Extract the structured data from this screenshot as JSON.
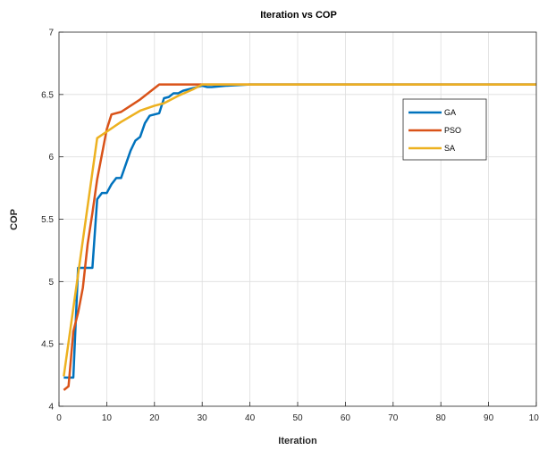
{
  "chart_data": {
    "type": "line",
    "title": "Iteration vs COP",
    "xlabel": "Iteration",
    "ylabel": "COP",
    "xlim": [
      0,
      100
    ],
    "ylim": [
      4,
      7
    ],
    "xticks": [
      0,
      10,
      20,
      30,
      40,
      50,
      60,
      70,
      80,
      90,
      100
    ],
    "yticks": [
      4,
      4.5,
      5,
      5.5,
      6,
      6.5,
      7
    ],
    "grid": true,
    "legend_position": "upper-right",
    "series": [
      {
        "name": "GA",
        "color": "#0072BD",
        "x": [
          1,
          3,
          4,
          5,
          6,
          7,
          8,
          9,
          10,
          11,
          12,
          13,
          14,
          15,
          16,
          17,
          18,
          19,
          20,
          21,
          22,
          23,
          24,
          25,
          26,
          27,
          28,
          29,
          30,
          31,
          32,
          35,
          40,
          50,
          100
        ],
        "y": [
          4.23,
          4.23,
          5.11,
          5.11,
          5.11,
          5.11,
          5.66,
          5.71,
          5.71,
          5.78,
          5.83,
          5.83,
          5.94,
          6.05,
          6.13,
          6.16,
          6.27,
          6.33,
          6.34,
          6.35,
          6.47,
          6.48,
          6.51,
          6.51,
          6.53,
          6.54,
          6.55,
          6.56,
          6.57,
          6.56,
          6.56,
          6.57,
          6.58,
          6.58,
          6.58
        ]
      },
      {
        "name": "PSO",
        "color": "#D95319",
        "x": [
          1,
          2,
          3,
          4,
          5,
          6,
          7,
          8,
          9,
          10,
          11,
          13,
          15,
          17,
          19,
          21,
          100
        ],
        "y": [
          4.13,
          4.16,
          4.6,
          4.75,
          4.95,
          5.3,
          5.55,
          5.82,
          6.02,
          6.22,
          6.34,
          6.36,
          6.41,
          6.46,
          6.52,
          6.58,
          6.58
        ]
      },
      {
        "name": "SA",
        "color": "#EDB120",
        "x": [
          1,
          8,
          13,
          17,
          20,
          22,
          25,
          28,
          30,
          50,
          100
        ],
        "y": [
          4.24,
          6.15,
          6.28,
          6.37,
          6.41,
          6.43,
          6.49,
          6.54,
          6.58,
          6.58,
          6.58
        ]
      }
    ]
  }
}
